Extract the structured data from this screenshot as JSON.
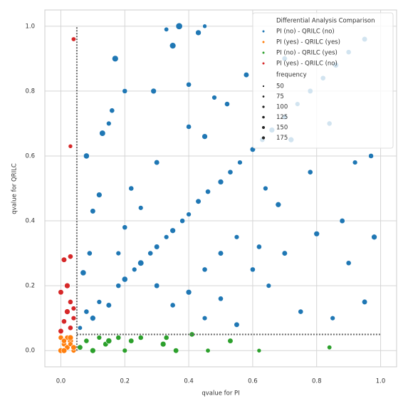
{
  "chart_data": {
    "type": "scatter",
    "x_label": "qvalue for PI",
    "y_label": "qvalue for QRILC",
    "xlim": [
      -0.05,
      1.05
    ],
    "ylim": [
      -0.05,
      1.05
    ],
    "xticks": [
      {
        "value": 0,
        "label": "0.0"
      },
      {
        "value": 0.2,
        "label": "0.2"
      },
      {
        "value": 0.4,
        "label": "0.4"
      },
      {
        "value": 0.6,
        "label": "0.6"
      },
      {
        "value": 0.8,
        "label": "0.8"
      },
      {
        "value": 1,
        "label": "1.0"
      }
    ],
    "yticks": [
      {
        "value": 0,
        "label": "0.0"
      },
      {
        "value": 0.2,
        "label": "0.2"
      },
      {
        "value": 0.4,
        "label": "0.4"
      },
      {
        "value": 0.6,
        "label": "0.6"
      },
      {
        "value": 0.8,
        "label": "0.8"
      },
      {
        "value": 1,
        "label": "1.0"
      }
    ],
    "grid": true,
    "legend_position": "upper right",
    "legend_title": "Differential Analysis Comparison",
    "thresholds": {
      "x": 0.05,
      "y": 0.05
    },
    "size_legend": {
      "title": "frequency",
      "values": [
        50,
        75,
        100,
        125,
        150,
        175
      ]
    },
    "series": [
      {
        "name": "PI (no)  - QRILC (no)",
        "color": "#1f77b4",
        "x": [
          0.06,
          0.08,
          0.1,
          0.12,
          0.15,
          0.18,
          0.2,
          0.23,
          0.25,
          0.28,
          0.3,
          0.33,
          0.35,
          0.38,
          0.4,
          0.43,
          0.46,
          0.5,
          0.53,
          0.56,
          0.6,
          0.63,
          0.66,
          0.7,
          0.74,
          0.78,
          0.82,
          0.86,
          0.9,
          0.95,
          0.37,
          0.43,
          0.33,
          0.45,
          0.17,
          0.16,
          0.15,
          0.13,
          0.08,
          0.12,
          0.1,
          0.09,
          0.07,
          0.2,
          0.29,
          0.35,
          0.4,
          0.45,
          0.3,
          0.25,
          0.22,
          0.2,
          0.18,
          0.3,
          0.35,
          0.4,
          0.45,
          0.5,
          0.55,
          0.6,
          0.65,
          0.7,
          0.75,
          0.8,
          0.85,
          0.9,
          0.95,
          0.98,
          0.97,
          0.92,
          0.88,
          0.78,
          0.68,
          0.62,
          0.55,
          0.5,
          0.45,
          0.58,
          0.52,
          0.48,
          0.4,
          0.7,
          0.84,
          0.72,
          0.64
        ],
        "values": [
          0.07,
          0.12,
          0.1,
          0.15,
          0.14,
          0.2,
          0.22,
          0.25,
          0.27,
          0.3,
          0.32,
          0.35,
          0.37,
          0.4,
          0.42,
          0.46,
          0.49,
          0.52,
          0.55,
          0.58,
          0.62,
          0.65,
          0.68,
          0.72,
          0.76,
          0.8,
          0.84,
          0.88,
          0.92,
          0.96,
          1.0,
          0.98,
          0.99,
          1.0,
          0.9,
          0.74,
          0.7,
          0.67,
          0.6,
          0.48,
          0.43,
          0.3,
          0.24,
          0.8,
          0.8,
          0.94,
          0.69,
          0.66,
          0.58,
          0.44,
          0.5,
          0.38,
          0.3,
          0.2,
          0.14,
          0.18,
          0.1,
          0.16,
          0.08,
          0.25,
          0.2,
          0.3,
          0.12,
          0.36,
          0.1,
          0.27,
          0.15,
          0.35,
          0.6,
          0.58,
          0.4,
          0.55,
          0.45,
          0.32,
          0.35,
          0.3,
          0.25,
          0.85,
          0.76,
          0.78,
          0.82,
          0.9,
          0.7,
          0.65,
          0.5
        ],
        "sizes": [
          80,
          100,
          120,
          90,
          110,
          100,
          130,
          90,
          140,
          100,
          110,
          90,
          120,
          100,
          90,
          110,
          100,
          120,
          100,
          90,
          110,
          100,
          120,
          100,
          90,
          110,
          100,
          120,
          100,
          110,
          170,
          120,
          80,
          70,
          150,
          100,
          90,
          140,
          130,
          120,
          110,
          100,
          130,
          100,
          120,
          150,
          100,
          120,
          110,
          90,
          100,
          100,
          90,
          110,
          100,
          120,
          90,
          100,
          110,
          100,
          90,
          110,
          100,
          120,
          90,
          100,
          110,
          120,
          100,
          90,
          110,
          100,
          120,
          100,
          90,
          110,
          100,
          110,
          100,
          90,
          100,
          110,
          100,
          120,
          90
        ]
      },
      {
        "name": "PI (yes) - QRILC (yes)",
        "color": "#ff7f0e",
        "x": [
          0.0,
          0.01,
          0.02,
          0.03,
          0.04,
          0.0,
          0.01,
          0.02,
          0.03,
          0.04,
          0.01,
          0.03
        ],
        "values": [
          0.0,
          0.02,
          0.01,
          0.03,
          0.0,
          0.04,
          0.0,
          0.04,
          0.02,
          0.01,
          0.03,
          0.04
        ],
        "sizes": [
          120,
          100,
          110,
          130,
          90,
          100,
          120,
          100,
          90,
          110,
          100,
          120
        ]
      },
      {
        "name": "PI (no)  - QRILC (yes)",
        "color": "#2ca02c",
        "x": [
          0.06,
          0.08,
          0.1,
          0.12,
          0.14,
          0.15,
          0.18,
          0.2,
          0.22,
          0.25,
          0.32,
          0.33,
          0.36,
          0.41,
          0.46,
          0.53,
          0.62,
          0.84
        ],
        "values": [
          0.01,
          0.03,
          0.0,
          0.04,
          0.02,
          0.03,
          0.04,
          0.0,
          0.03,
          0.04,
          0.02,
          0.04,
          0.0,
          0.05,
          0.0,
          0.03,
          0.0,
          0.01
        ],
        "sizes": [
          110,
          100,
          120,
          90,
          110,
          130,
          100,
          90,
          110,
          100,
          120,
          100,
          110,
          100,
          80,
          110,
          70,
          80
        ]
      },
      {
        "name": "PI (yes) - QRILC (no)",
        "color": "#d62728",
        "x": [
          0.0,
          0.01,
          0.02,
          0.03,
          0.04,
          0.0,
          0.02,
          0.03,
          0.04,
          0.01,
          0.03,
          0.04,
          0.03
        ],
        "values": [
          0.06,
          0.09,
          0.12,
          0.15,
          0.1,
          0.18,
          0.2,
          0.29,
          0.13,
          0.28,
          0.07,
          0.96,
          0.63
        ],
        "sizes": [
          110,
          100,
          120,
          100,
          90,
          110,
          120,
          100,
          90,
          110,
          100,
          80,
          70
        ]
      }
    ]
  }
}
